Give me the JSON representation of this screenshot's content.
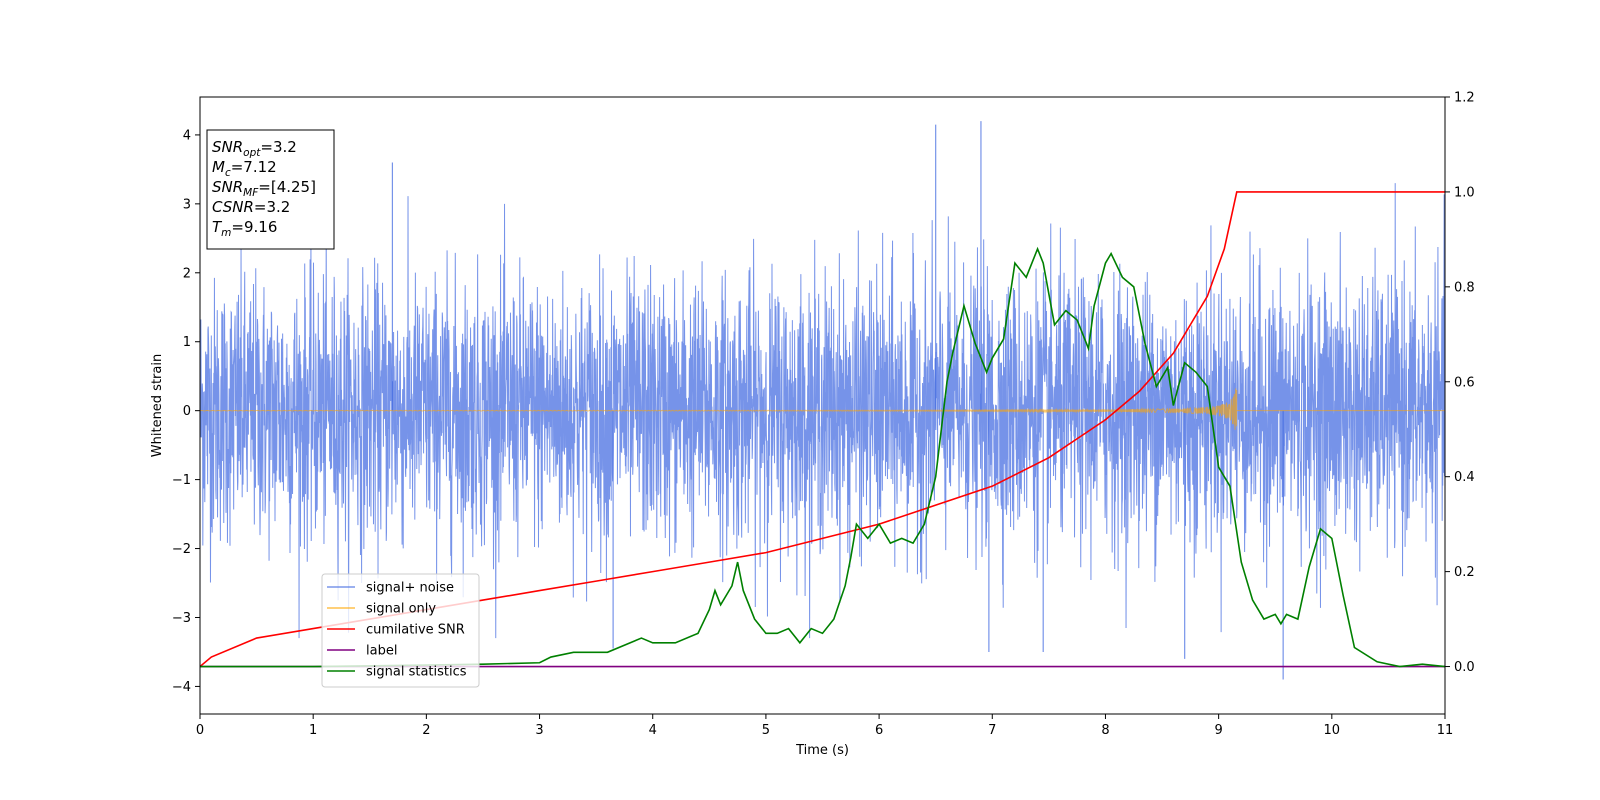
{
  "chart_data": {
    "type": "line",
    "xlabel": "Time (s)",
    "ylabel": "Whitened strain",
    "xlim": [
      0,
      11
    ],
    "ylim_left": [
      -4.4,
      4.55
    ],
    "ylim_right": [
      -0.1,
      1.2
    ],
    "x_ticks": [
      0,
      1,
      2,
      3,
      4,
      5,
      6,
      7,
      8,
      9,
      10,
      11
    ],
    "y_ticks_left": [
      -4,
      -3,
      -2,
      -1,
      0,
      1,
      2,
      3,
      4
    ],
    "y_ticks_right": [
      0.0,
      0.2,
      0.4,
      0.6,
      0.8,
      1.0,
      1.2
    ],
    "x_tick_labels": [
      "0",
      "1",
      "2",
      "3",
      "4",
      "5",
      "6",
      "7",
      "8",
      "9",
      "10",
      "11"
    ],
    "y_tick_labels_left": [
      "−4",
      "−3",
      "−2",
      "−1",
      "0",
      "1",
      "2",
      "3",
      "4"
    ],
    "y_tick_labels_right": [
      "0.0",
      "0.2",
      "0.4",
      "0.6",
      "0.8",
      "1.0",
      "1.2"
    ],
    "legend_placement": "lower-left",
    "grid": false,
    "info_box": {
      "placement": "top-left",
      "lines": [
        {
          "main": "SNR",
          "sub": "opt",
          "rest": "=3.2"
        },
        {
          "main": "M",
          "sub": "c",
          "rest": "=7.12"
        },
        {
          "main": "SNR",
          "sub": "MF",
          "rest": "=[4.25]"
        },
        {
          "main": "CSNR",
          "sub": "",
          "rest": "=3.2"
        },
        {
          "main": "T",
          "sub": "m",
          "rest": "=9.16"
        }
      ]
    },
    "series": [
      {
        "name": "signal+ noise",
        "axis": "left",
        "color": "#4169e1",
        "style": "noise",
        "noise_std": 0.95,
        "noise_peaks": [
          [
            1.7,
            3.6
          ],
          [
            6.5,
            4.15
          ],
          [
            6.9,
            4.2
          ],
          [
            9.57,
            -3.9
          ],
          [
            6.97,
            -3.5
          ],
          [
            7.45,
            -3.5
          ],
          [
            8.7,
            -3.6
          ],
          [
            3.65,
            -3.45
          ]
        ]
      },
      {
        "name": "signal only",
        "axis": "left",
        "color": "#ffa500",
        "style": "chirp",
        "merger_time": 9.16,
        "peak_amplitude": 0.45
      },
      {
        "name": "cumilative SNR",
        "axis": "right",
        "color": "#ff0000",
        "x": [
          0,
          0.1,
          0.5,
          1,
          1.5,
          2,
          2.5,
          3,
          3.5,
          4,
          4.5,
          5,
          5.5,
          6,
          6.5,
          7,
          7.5,
          8,
          8.3,
          8.6,
          8.9,
          9.05,
          9.16,
          9.16,
          11
        ],
        "y": [
          0.0,
          0.02,
          0.06,
          0.08,
          0.1,
          0.12,
          0.14,
          0.16,
          0.18,
          0.2,
          0.22,
          0.24,
          0.27,
          0.3,
          0.34,
          0.38,
          0.44,
          0.52,
          0.58,
          0.66,
          0.78,
          0.88,
          1.0,
          1.0,
          1.0
        ]
      },
      {
        "name": "label",
        "axis": "right",
        "color": "#800080",
        "x": [
          0,
          11
        ],
        "y": [
          0.0,
          0.0
        ]
      },
      {
        "name": "signal statistics",
        "axis": "right",
        "color": "#008000",
        "x": [
          0,
          1,
          2,
          2.5,
          3,
          3.1,
          3.3,
          3.6,
          3.9,
          4.0,
          4.2,
          4.4,
          4.5,
          4.55,
          4.6,
          4.7,
          4.75,
          4.8,
          4.9,
          5.0,
          5.1,
          5.2,
          5.3,
          5.4,
          5.5,
          5.6,
          5.7,
          5.75,
          5.8,
          5.9,
          6.0,
          6.1,
          6.2,
          6.3,
          6.4,
          6.5,
          6.6,
          6.65,
          6.75,
          6.85,
          6.95,
          7.0,
          7.1,
          7.2,
          7.3,
          7.4,
          7.45,
          7.55,
          7.65,
          7.75,
          7.85,
          7.9,
          8.0,
          8.05,
          8.15,
          8.25,
          8.35,
          8.45,
          8.55,
          8.6,
          8.7,
          8.8,
          8.9,
          9.0,
          9.1,
          9.2,
          9.3,
          9.4,
          9.5,
          9.55,
          9.6,
          9.7,
          9.8,
          9.9,
          10.0,
          10.1,
          10.2,
          10.4,
          10.6,
          10.8,
          11
        ],
        "y": [
          0.0,
          0.0,
          0.003,
          0.005,
          0.008,
          0.02,
          0.03,
          0.03,
          0.06,
          0.05,
          0.05,
          0.07,
          0.12,
          0.16,
          0.13,
          0.17,
          0.22,
          0.16,
          0.1,
          0.07,
          0.07,
          0.08,
          0.05,
          0.08,
          0.07,
          0.1,
          0.17,
          0.23,
          0.3,
          0.27,
          0.3,
          0.26,
          0.27,
          0.26,
          0.3,
          0.4,
          0.6,
          0.66,
          0.76,
          0.68,
          0.62,
          0.65,
          0.69,
          0.85,
          0.82,
          0.88,
          0.85,
          0.72,
          0.75,
          0.73,
          0.67,
          0.76,
          0.85,
          0.87,
          0.82,
          0.8,
          0.68,
          0.59,
          0.63,
          0.55,
          0.64,
          0.62,
          0.59,
          0.42,
          0.38,
          0.22,
          0.14,
          0.1,
          0.11,
          0.09,
          0.11,
          0.1,
          0.21,
          0.29,
          0.27,
          0.15,
          0.04,
          0.01,
          0.0,
          0.005,
          0.0
        ]
      }
    ]
  }
}
